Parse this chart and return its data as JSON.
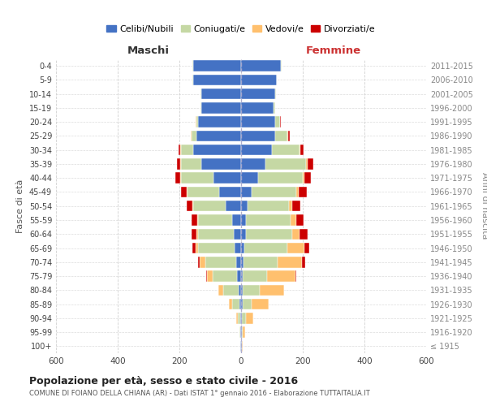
{
  "age_groups": [
    "100+",
    "95-99",
    "90-94",
    "85-89",
    "80-84",
    "75-79",
    "70-74",
    "65-69",
    "60-64",
    "55-59",
    "50-54",
    "45-49",
    "40-44",
    "35-39",
    "30-34",
    "25-29",
    "20-24",
    "15-19",
    "10-14",
    "5-9",
    "0-4"
  ],
  "birth_years": [
    "≤ 1915",
    "1916-1920",
    "1921-1925",
    "1926-1930",
    "1931-1935",
    "1936-1940",
    "1941-1945",
    "1946-1950",
    "1951-1955",
    "1956-1960",
    "1961-1965",
    "1966-1970",
    "1971-1975",
    "1976-1980",
    "1981-1985",
    "1986-1990",
    "1991-1995",
    "1996-2000",
    "2001-2005",
    "2006-2010",
    "2011-2015"
  ],
  "maschi": {
    "celibi": [
      2,
      2,
      3,
      5,
      8,
      12,
      15,
      20,
      25,
      30,
      50,
      70,
      90,
      130,
      155,
      145,
      140,
      130,
      130,
      155,
      155
    ],
    "coniugati": [
      0,
      2,
      8,
      25,
      50,
      80,
      100,
      120,
      115,
      110,
      105,
      105,
      105,
      65,
      40,
      15,
      5,
      2,
      2,
      2,
      2
    ],
    "vedovi": [
      0,
      2,
      5,
      10,
      15,
      18,
      20,
      8,
      5,
      3,
      2,
      2,
      2,
      2,
      2,
      2,
      2,
      0,
      0,
      0,
      0
    ],
    "divorziati": [
      0,
      0,
      0,
      0,
      0,
      2,
      5,
      10,
      15,
      18,
      20,
      18,
      15,
      10,
      5,
      2,
      0,
      0,
      0,
      0,
      0
    ]
  },
  "femmine": {
    "celibi": [
      2,
      2,
      3,
      5,
      5,
      5,
      8,
      10,
      15,
      15,
      20,
      35,
      55,
      80,
      100,
      110,
      110,
      105,
      110,
      115,
      130
    ],
    "coniugati": [
      0,
      3,
      12,
      30,
      55,
      80,
      110,
      140,
      150,
      145,
      135,
      145,
      145,
      130,
      90,
      40,
      15,
      5,
      2,
      2,
      2
    ],
    "vedovi": [
      2,
      8,
      25,
      55,
      80,
      90,
      80,
      55,
      25,
      18,
      12,
      8,
      5,
      5,
      3,
      2,
      2,
      0,
      0,
      0,
      0
    ],
    "divorziati": [
      0,
      0,
      0,
      0,
      0,
      5,
      10,
      15,
      25,
      25,
      25,
      25,
      22,
      18,
      10,
      5,
      2,
      0,
      0,
      0,
      0
    ]
  },
  "colors": {
    "celibi": "#4472c4",
    "coniugati": "#c5d8a4",
    "vedovi": "#ffc06e",
    "divorziati": "#cc0000"
  },
  "xlim": 600,
  "title": "Popolazione per età, sesso e stato civile - 2016",
  "subtitle": "COMUNE DI FOIANO DELLA CHIANA (AR) - Dati ISTAT 1° gennaio 2016 - Elaborazione TUTTAITALIA.IT",
  "ylabel_left": "Fasce di età",
  "ylabel_right": "Anni di nascita",
  "xlabel_maschi": "Maschi",
  "xlabel_femmine": "Femmine",
  "legend_labels": [
    "Celibi/Nubili",
    "Coniugati/e",
    "Vedovi/e",
    "Divorziati/e"
  ],
  "bg_color": "#ffffff",
  "grid_color": "#cccccc"
}
